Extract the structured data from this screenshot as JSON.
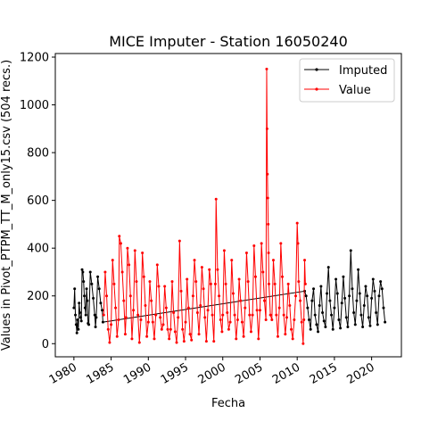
{
  "chart_data": {
    "type": "line",
    "title": "MICE Imputer - Station 16050240",
    "xlabel": "Fecha",
    "ylabel": "Values in Pivot_PTPM_TT_M_only15.csv (504 recs.)",
    "xlim": [
      1977.5,
      2024
    ],
    "ylim": [
      -55,
      1215
    ],
    "x_ticks": [
      1980,
      1985,
      1990,
      1995,
      2000,
      2005,
      2010,
      2015,
      2020
    ],
    "x_tick_labels": [
      "1980",
      "1985",
      "1990",
      "1995",
      "2000",
      "2005",
      "2010",
      "2015",
      "2020"
    ],
    "y_ticks": [
      0,
      200,
      400,
      600,
      800,
      1000,
      1200
    ],
    "y_tick_labels": [
      "0",
      "200",
      "400",
      "600",
      "800",
      "1000",
      "1200"
    ],
    "legend_position": "top-right",
    "grid": false,
    "series": [
      {
        "name": "Imputed",
        "color": "#000000",
        "points": [
          [
            1980.0,
            150
          ],
          [
            1980.1,
            230
          ],
          [
            1980.2,
            120
          ],
          [
            1980.3,
            80
          ],
          [
            1980.4,
            45
          ],
          [
            1980.5,
            100
          ],
          [
            1980.6,
            60
          ],
          [
            1980.7,
            170
          ],
          [
            1980.8,
            130
          ],
          [
            1980.9,
            110
          ],
          [
            1981.0,
            95
          ],
          [
            1981.1,
            310
          ],
          [
            1981.2,
            300
          ],
          [
            1981.3,
            260
          ],
          [
            1981.4,
            200
          ],
          [
            1981.5,
            150
          ],
          [
            1981.6,
            120
          ],
          [
            1981.7,
            230
          ],
          [
            1981.8,
            180
          ],
          [
            1981.9,
            85
          ],
          [
            1982.0,
            80
          ],
          [
            1982.2,
            300
          ],
          [
            1982.4,
            250
          ],
          [
            1982.6,
            190
          ],
          [
            1982.8,
            120
          ],
          [
            1982.9,
            70
          ],
          [
            1983.0,
            110
          ],
          [
            1983.2,
            280
          ],
          [
            1983.4,
            230
          ],
          [
            1983.6,
            170
          ],
          [
            1983.8,
            140
          ],
          [
            1983.9,
            90
          ],
          [
            2011.0,
            220
          ],
          [
            2011.2,
            200
          ],
          [
            2011.4,
            150
          ],
          [
            2011.6,
            100
          ],
          [
            2011.8,
            60
          ],
          [
            2012.0,
            180
          ],
          [
            2012.2,
            230
          ],
          [
            2012.4,
            120
          ],
          [
            2012.6,
            80
          ],
          [
            2012.8,
            50
          ],
          [
            2013.0,
            160
          ],
          [
            2013.2,
            240
          ],
          [
            2013.4,
            130
          ],
          [
            2013.6,
            95
          ],
          [
            2013.8,
            70
          ],
          [
            2014.0,
            210
          ],
          [
            2014.2,
            320
          ],
          [
            2014.4,
            180
          ],
          [
            2014.6,
            120
          ],
          [
            2014.8,
            60
          ],
          [
            2015.0,
            150
          ],
          [
            2015.2,
            270
          ],
          [
            2015.4,
            210
          ],
          [
            2015.6,
            100
          ],
          [
            2015.8,
            65
          ],
          [
            2016.0,
            170
          ],
          [
            2016.2,
            280
          ],
          [
            2016.4,
            190
          ],
          [
            2016.6,
            110
          ],
          [
            2016.8,
            70
          ],
          [
            2017.0,
            200
          ],
          [
            2017.2,
            390
          ],
          [
            2017.4,
            230
          ],
          [
            2017.6,
            130
          ],
          [
            2017.8,
            80
          ],
          [
            2018.0,
            180
          ],
          [
            2018.2,
            310
          ],
          [
            2018.4,
            210
          ],
          [
            2018.6,
            120
          ],
          [
            2018.8,
            70
          ],
          [
            2019.0,
            160
          ],
          [
            2019.2,
            240
          ],
          [
            2019.4,
            200
          ],
          [
            2019.6,
            110
          ],
          [
            2019.8,
            75
          ],
          [
            2020.0,
            190
          ],
          [
            2020.2,
            270
          ],
          [
            2020.4,
            220
          ],
          [
            2020.6,
            130
          ],
          [
            2020.8,
            80
          ],
          [
            2021.0,
            200
          ],
          [
            2021.2,
            260
          ],
          [
            2021.4,
            230
          ],
          [
            2021.6,
            150
          ],
          [
            2021.8,
            90
          ]
        ]
      },
      {
        "name": "Value",
        "color": "#ff0000",
        "points": [
          [
            1984.0,
            120
          ],
          [
            1984.2,
            300
          ],
          [
            1984.4,
            200
          ],
          [
            1984.6,
            60
          ],
          [
            1984.8,
            5
          ],
          [
            1985.0,
            80
          ],
          [
            1985.2,
            350
          ],
          [
            1985.4,
            250
          ],
          [
            1985.6,
            150
          ],
          [
            1985.8,
            30
          ],
          [
            1986.0,
            100
          ],
          [
            1986.1,
            450
          ],
          [
            1986.3,
            420
          ],
          [
            1986.5,
            300
          ],
          [
            1986.7,
            180
          ],
          [
            1986.9,
            40
          ],
          [
            1987.0,
            110
          ],
          [
            1987.2,
            400
          ],
          [
            1987.4,
            330
          ],
          [
            1987.6,
            200
          ],
          [
            1987.8,
            20
          ],
          [
            1988.0,
            140
          ],
          [
            1988.2,
            390
          ],
          [
            1988.4,
            260
          ],
          [
            1988.6,
            120
          ],
          [
            1988.8,
            5
          ],
          [
            1989.0,
            100
          ],
          [
            1989.2,
            380
          ],
          [
            1989.4,
            280
          ],
          [
            1989.6,
            160
          ],
          [
            1989.8,
            30
          ],
          [
            1990.0,
            90
          ],
          [
            1990.2,
            260
          ],
          [
            1990.4,
            180
          ],
          [
            1990.6,
            90
          ],
          [
            1990.8,
            20
          ],
          [
            1991.0,
            120
          ],
          [
            1991.2,
            330
          ],
          [
            1991.4,
            240
          ],
          [
            1991.6,
            110
          ],
          [
            1991.8,
            60
          ],
          [
            1992.0,
            80
          ],
          [
            1992.2,
            240
          ],
          [
            1992.4,
            150
          ],
          [
            1992.6,
            60
          ],
          [
            1992.8,
            20
          ],
          [
            1993.0,
            60
          ],
          [
            1993.2,
            260
          ],
          [
            1993.4,
            130
          ],
          [
            1993.6,
            50
          ],
          [
            1993.8,
            5
          ],
          [
            1994.0,
            110
          ],
          [
            1994.2,
            430
          ],
          [
            1994.4,
            220
          ],
          [
            1994.6,
            60
          ],
          [
            1994.8,
            10
          ],
          [
            1995.0,
            90
          ],
          [
            1995.2,
            270
          ],
          [
            1995.4,
            150
          ],
          [
            1995.6,
            40
          ],
          [
            1995.8,
            15
          ],
          [
            1996.0,
            200
          ],
          [
            1996.2,
            350
          ],
          [
            1996.4,
            260
          ],
          [
            1996.6,
            130
          ],
          [
            1996.8,
            40
          ],
          [
            1997.0,
            160
          ],
          [
            1997.2,
            320
          ],
          [
            1997.4,
            230
          ],
          [
            1997.6,
            110
          ],
          [
            1997.8,
            10
          ],
          [
            1998.0,
            140
          ],
          [
            1998.2,
            310
          ],
          [
            1998.4,
            250
          ],
          [
            1998.6,
            120
          ],
          [
            1998.8,
            10
          ],
          [
            1999.0,
            250
          ],
          [
            1999.1,
            605
          ],
          [
            1999.3,
            310
          ],
          [
            1999.5,
            200
          ],
          [
            1999.7,
            100
          ],
          [
            1999.9,
            50
          ],
          [
            2000.0,
            120
          ],
          [
            2000.2,
            390
          ],
          [
            2000.4,
            250
          ],
          [
            2000.6,
            130
          ],
          [
            2000.8,
            60
          ],
          [
            2001.0,
            90
          ],
          [
            2001.2,
            350
          ],
          [
            2001.4,
            210
          ],
          [
            2001.6,
            120
          ],
          [
            2001.8,
            20
          ],
          [
            2002.0,
            100
          ],
          [
            2002.2,
            270
          ],
          [
            2002.4,
            180
          ],
          [
            2002.6,
            90
          ],
          [
            2002.8,
            30
          ],
          [
            2003.0,
            150
          ],
          [
            2003.2,
            380
          ],
          [
            2003.4,
            260
          ],
          [
            2003.6,
            120
          ],
          [
            2003.8,
            50
          ],
          [
            2004.0,
            120
          ],
          [
            2004.2,
            410
          ],
          [
            2004.4,
            280
          ],
          [
            2004.6,
            140
          ],
          [
            2004.8,
            20
          ],
          [
            2005.0,
            140
          ],
          [
            2005.2,
            420
          ],
          [
            2005.4,
            300
          ],
          [
            2005.6,
            180
          ],
          [
            2005.8,
            100
          ],
          [
            2005.9,
            1150
          ],
          [
            2005.95,
            900
          ],
          [
            2006.0,
            710
          ],
          [
            2006.05,
            610
          ],
          [
            2006.1,
            500
          ],
          [
            2006.15,
            380
          ],
          [
            2006.2,
            250
          ],
          [
            2006.4,
            120
          ],
          [
            2006.6,
            100
          ],
          [
            2006.8,
            350
          ],
          [
            2007.0,
            250
          ],
          [
            2007.2,
            120
          ],
          [
            2007.4,
            30
          ],
          [
            2007.6,
            150
          ],
          [
            2007.8,
            420
          ],
          [
            2008.0,
            280
          ],
          [
            2008.2,
            120
          ],
          [
            2008.4,
            40
          ],
          [
            2008.6,
            110
          ],
          [
            2008.8,
            250
          ],
          [
            2009.0,
            160
          ],
          [
            2009.2,
            60
          ],
          [
            2009.4,
            20
          ],
          [
            2009.6,
            100
          ],
          [
            2009.8,
            200
          ],
          [
            2010.0,
            505
          ],
          [
            2010.1,
            420
          ],
          [
            2010.2,
            260
          ],
          [
            2010.4,
            180
          ],
          [
            2010.6,
            90
          ],
          [
            2010.8,
            0
          ],
          [
            2010.9,
            100
          ],
          [
            2011.0,
            350
          ],
          [
            2011.1,
            250
          ]
        ]
      }
    ]
  }
}
